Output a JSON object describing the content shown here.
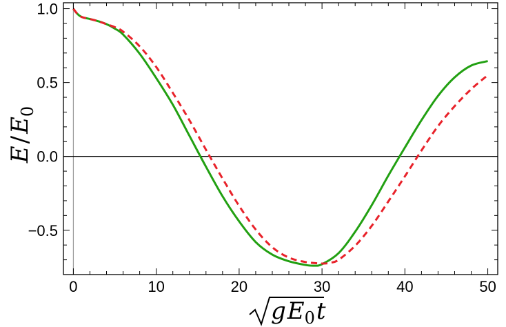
{
  "chart_data": {
    "type": "line",
    "title": "",
    "xlabel_parts": {
      "radical": "√",
      "var1": "g",
      "var2": "E",
      "sub": "0",
      "var3": "t"
    },
    "ylabel_parts": {
      "num": "E",
      "slash": "/",
      "den": "E",
      "sub": "0"
    },
    "xlim": [
      -1.2,
      51.2
    ],
    "ylim": [
      -0.8,
      1.04
    ],
    "x_ticks": [
      0,
      10,
      20,
      30,
      40,
      50
    ],
    "x_tick_labels": [
      "0",
      "10",
      "20",
      "30",
      "40",
      "50"
    ],
    "y_ticks": [
      1.0,
      0.5,
      0.0,
      -0.5
    ],
    "y_tick_labels": [
      "1.0",
      "0.5",
      "0.0",
      "−0.5"
    ],
    "reference_lines": {
      "y": 0.0,
      "x": 0.0
    },
    "colors": {
      "series_solid": "#22a012",
      "series_dashed": "#e8222a",
      "axis": "#000000",
      "reference": "#000000",
      "vline": "#999999"
    },
    "series": [
      {
        "name": "solid",
        "style": "solid",
        "x": [
          0,
          0.4,
          0.8,
          1.2,
          2,
          3,
          4,
          5,
          6,
          8,
          10,
          12,
          14,
          16,
          18,
          20,
          22,
          24,
          26,
          28,
          29,
          30,
          32,
          34,
          36,
          38,
          40,
          42,
          44,
          46,
          48,
          50
        ],
        "y": [
          1.0,
          0.97,
          0.95,
          0.94,
          0.93,
          0.915,
          0.895,
          0.865,
          0.825,
          0.695,
          0.53,
          0.35,
          0.14,
          -0.07,
          -0.27,
          -0.44,
          -0.58,
          -0.665,
          -0.71,
          -0.735,
          -0.74,
          -0.73,
          -0.655,
          -0.51,
          -0.33,
          -0.13,
          0.06,
          0.245,
          0.41,
          0.535,
          0.615,
          0.645
        ]
      },
      {
        "name": "dashed",
        "style": "dashed",
        "x": [
          0,
          0.4,
          0.8,
          1.2,
          2,
          3,
          4,
          5,
          6,
          8,
          10,
          12,
          14,
          16,
          18,
          20,
          22,
          24,
          26,
          28,
          30,
          31,
          32,
          34,
          36,
          38,
          40,
          42,
          44,
          46,
          48,
          50
        ],
        "y": [
          1.0,
          0.97,
          0.95,
          0.94,
          0.93,
          0.915,
          0.895,
          0.875,
          0.845,
          0.745,
          0.605,
          0.43,
          0.245,
          0.045,
          -0.15,
          -0.335,
          -0.495,
          -0.615,
          -0.685,
          -0.715,
          -0.725,
          -0.72,
          -0.7,
          -0.605,
          -0.47,
          -0.305,
          -0.135,
          0.04,
          0.205,
          0.34,
          0.455,
          0.55
        ]
      }
    ]
  }
}
